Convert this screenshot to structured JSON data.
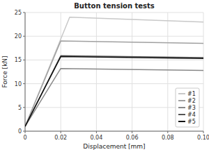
{
  "chart_data": {
    "type": "line",
    "title": "Button tension tests",
    "x_label": "Displacement [mm]",
    "y_label": "Force [kN]",
    "xlim": [
      0,
      0.1
    ],
    "ylim": [
      0,
      25
    ],
    "xticks": [
      0,
      0.02,
      0.04,
      0.06,
      0.08,
      {
        "value": 0.1,
        "label": "0.10"
      }
    ],
    "yticks": [
      0,
      5,
      10,
      15,
      20,
      25
    ],
    "grid": true,
    "legend": "lower right",
    "series": [
      {
        "name": "#1",
        "color": "#c8c8c8",
        "x": [
          0,
          0.025,
          0.1
        ],
        "values": [
          1.0,
          24.0,
          23.0
        ]
      },
      {
        "name": "#2",
        "color": "#a0a0a0",
        "x": [
          0,
          0.02,
          0.1
        ],
        "values": [
          1.0,
          19.0,
          18.5
        ]
      },
      {
        "name": "#3",
        "color": "#888888",
        "x": [
          0,
          0.02,
          0.1
        ],
        "values": [
          1.0,
          13.2,
          12.8
        ]
      },
      {
        "name": "#4",
        "color": "#555555",
        "x": [
          0,
          0.02,
          0.1
        ],
        "values": [
          1.0,
          15.9,
          15.5
        ]
      },
      {
        "name": "#5",
        "color": "#111111",
        "x": [
          0,
          0.02,
          0.1
        ],
        "values": [
          1.0,
          15.7,
          15.3
        ]
      }
    ]
  }
}
